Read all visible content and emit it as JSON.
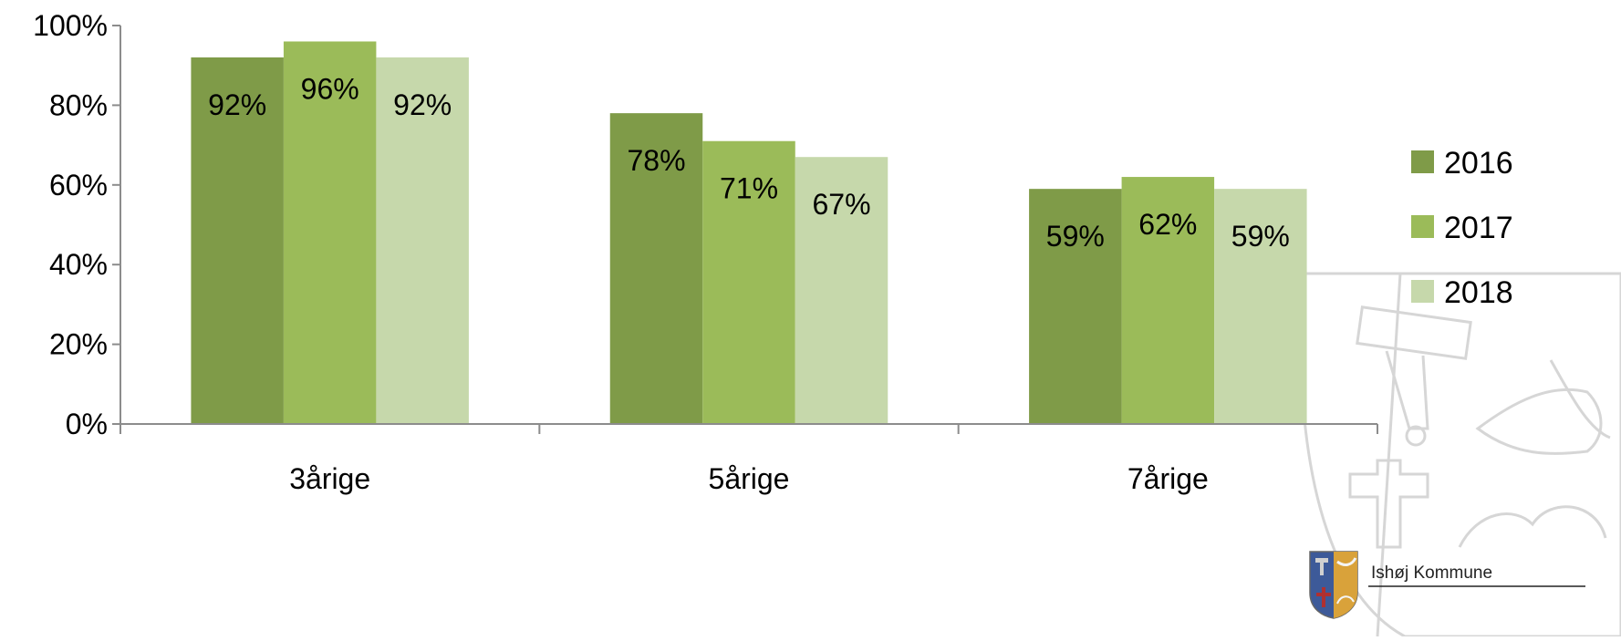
{
  "chart_data": {
    "type": "bar",
    "title": "",
    "xlabel": "",
    "ylabel": "",
    "categories": [
      "3årige",
      "5årige",
      "7årige"
    ],
    "series": [
      {
        "name": "2016",
        "values": [
          92,
          78,
          59
        ],
        "labels": [
          "92%",
          "78%",
          "59%"
        ],
        "color": "#7f9b48"
      },
      {
        "name": "2017",
        "values": [
          96,
          71,
          62
        ],
        "labels": [
          "96%",
          "71%",
          "62%"
        ],
        "color": "#9bbb59"
      },
      {
        "name": "2018",
        "values": [
          92,
          67,
          59
        ],
        "labels": [
          "92%",
          "67%",
          "59%"
        ],
        "color": "#c6d8ab"
      }
    ],
    "ylim": [
      0,
      100
    ],
    "yticks": [
      0,
      20,
      40,
      60,
      80,
      100
    ],
    "ytick_labels": [
      "0%",
      "20%",
      "40%",
      "60%",
      "80%",
      "100%"
    ],
    "grid": false,
    "legend_position": "right"
  },
  "logo": {
    "text": "Ishøj Kommune",
    "watermark_icon": "coat-of-arms-icon"
  },
  "colors": {
    "axis": "#8c8c8c",
    "text": "#000000",
    "watermark": "#d9d9d9"
  }
}
